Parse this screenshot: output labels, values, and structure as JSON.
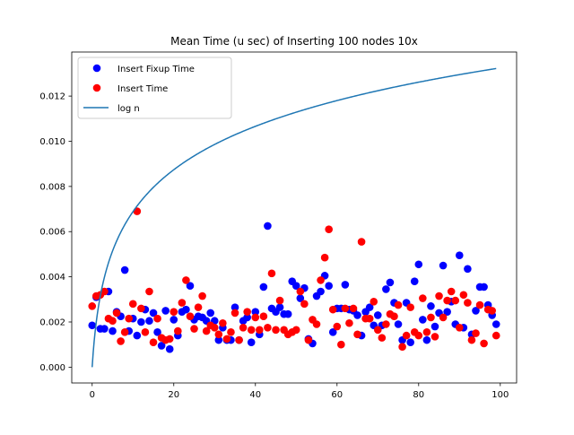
{
  "chart_data": {
    "type": "scatter",
    "title": "Mean Time (u sec) of Inserting 100 nodes 10x",
    "xlabel": "",
    "ylabel": "",
    "xlim": [
      -5,
      104
    ],
    "ylim": [
      -0.0007,
      0.01395
    ],
    "x_ticks": [
      0,
      20,
      40,
      60,
      80,
      100
    ],
    "y_ticks": [
      0.0,
      0.002,
      0.004,
      0.006,
      0.008,
      0.01,
      0.012
    ],
    "x_tick_labels": [
      "0",
      "20",
      "40",
      "60",
      "80",
      "100"
    ],
    "y_tick_labels": [
      "0.000",
      "0.002",
      "0.004",
      "0.006",
      "0.008",
      "0.010",
      "0.012"
    ],
    "grid": false,
    "legend_position": "top-left",
    "series": [
      {
        "name": "Insert Fixup Time",
        "kind": "scatter",
        "color": "#0000ff",
        "x": [
          0,
          1,
          2,
          3,
          4,
          5,
          6,
          7,
          8,
          9,
          10,
          11,
          12,
          13,
          14,
          15,
          16,
          17,
          18,
          19,
          20,
          21,
          22,
          23,
          24,
          25,
          26,
          27,
          28,
          29,
          30,
          31,
          32,
          33,
          34,
          35,
          36,
          37,
          38,
          39,
          40,
          41,
          42,
          43,
          44,
          45,
          46,
          47,
          48,
          49,
          50,
          51,
          52,
          53,
          54,
          55,
          56,
          57,
          58,
          59,
          60,
          61,
          62,
          63,
          64,
          65,
          66,
          67,
          68,
          69,
          70,
          71,
          72,
          73,
          74,
          75,
          76,
          77,
          78,
          79,
          80,
          81,
          82,
          83,
          84,
          85,
          86,
          87,
          88,
          89,
          90,
          91,
          92,
          93,
          94,
          95,
          96,
          97,
          98,
          99
        ],
        "y": [
          0.00185,
          0.0031,
          0.0017,
          0.0017,
          0.00335,
          0.0016,
          0.00245,
          0.00225,
          0.0043,
          0.0016,
          0.00215,
          0.0014,
          0.002,
          0.00255,
          0.00205,
          0.0024,
          0.00155,
          0.00095,
          0.0025,
          0.0008,
          0.0021,
          0.0014,
          0.00245,
          0.00255,
          0.0036,
          0.0021,
          0.00225,
          0.0022,
          0.00205,
          0.0024,
          0.00205,
          0.0012,
          0.00175,
          0.0012,
          0.0012,
          0.00265,
          0.0012,
          0.00205,
          0.0022,
          0.0011,
          0.00245,
          0.00145,
          0.00355,
          0.00625,
          0.0026,
          0.00245,
          0.00265,
          0.00235,
          0.00235,
          0.0038,
          0.0036,
          0.00305,
          0.0035,
          0.00125,
          0.00105,
          0.00315,
          0.00335,
          0.00405,
          0.0036,
          0.00155,
          0.0026,
          0.0026,
          0.00365,
          0.00255,
          0.0025,
          0.0023,
          0.0014,
          0.00245,
          0.00265,
          0.00185,
          0.0023,
          0.00185,
          0.00345,
          0.00375,
          0.00285,
          0.0019,
          0.0012,
          0.00285,
          0.0011,
          0.0038,
          0.00455,
          0.0021,
          0.0012,
          0.0027,
          0.0018,
          0.0024,
          0.0045,
          0.00245,
          0.0029,
          0.0019,
          0.00495,
          0.00175,
          0.00435,
          0.00145,
          0.0025,
          0.00355,
          0.00355,
          0.00275,
          0.0023,
          0.0019
        ]
      },
      {
        "name": "Insert Time",
        "kind": "scatter",
        "color": "#ff0000",
        "x": [
          0,
          1,
          2,
          3,
          4,
          5,
          6,
          7,
          8,
          9,
          10,
          11,
          12,
          13,
          14,
          15,
          16,
          17,
          18,
          19,
          20,
          21,
          22,
          23,
          24,
          25,
          26,
          27,
          28,
          29,
          30,
          31,
          32,
          33,
          34,
          35,
          36,
          37,
          38,
          39,
          40,
          41,
          42,
          43,
          44,
          45,
          46,
          47,
          48,
          49,
          50,
          51,
          52,
          53,
          54,
          55,
          56,
          57,
          58,
          59,
          60,
          61,
          62,
          63,
          64,
          65,
          66,
          67,
          68,
          69,
          70,
          71,
          72,
          73,
          74,
          75,
          76,
          77,
          78,
          79,
          80,
          81,
          82,
          83,
          84,
          85,
          86,
          87,
          88,
          89,
          90,
          91,
          92,
          93,
          94,
          95,
          96,
          97,
          98,
          99
        ],
        "y": [
          0.0027,
          0.00315,
          0.0032,
          0.00335,
          0.00215,
          0.00205,
          0.0024,
          0.00115,
          0.00155,
          0.00215,
          0.0028,
          0.0069,
          0.0026,
          0.00155,
          0.00335,
          0.0011,
          0.00215,
          0.0013,
          0.0012,
          0.00125,
          0.00245,
          0.0016,
          0.00285,
          0.00385,
          0.00225,
          0.0017,
          0.00265,
          0.00315,
          0.0016,
          0.00185,
          0.00175,
          0.00145,
          0.00195,
          0.00125,
          0.00155,
          0.0024,
          0.0012,
          0.00175,
          0.00245,
          0.00165,
          0.0022,
          0.00165,
          0.00225,
          0.00175,
          0.00415,
          0.00165,
          0.00295,
          0.00165,
          0.00145,
          0.00155,
          0.00165,
          0.00335,
          0.0028,
          0.0012,
          0.0021,
          0.0019,
          0.00385,
          0.00485,
          0.0061,
          0.00255,
          0.0018,
          0.001,
          0.0026,
          0.00195,
          0.0026,
          0.00145,
          0.00555,
          0.00215,
          0.00215,
          0.0029,
          0.00165,
          0.0013,
          0.0019,
          0.00235,
          0.00225,
          0.00275,
          0.0009,
          0.0014,
          0.00265,
          0.00155,
          0.0014,
          0.00305,
          0.00155,
          0.0022,
          0.00135,
          0.00315,
          0.0022,
          0.00295,
          0.00335,
          0.00295,
          0.00175,
          0.0032,
          0.00285,
          0.0012,
          0.0015,
          0.00275,
          0.00105,
          0.00255,
          0.0025,
          0.0014
        ]
      },
      {
        "name": "log n",
        "kind": "line",
        "color": "#1f77b4",
        "formula": "log10(1+x)/1000*6.61",
        "x_range": [
          0,
          99
        ]
      }
    ]
  }
}
